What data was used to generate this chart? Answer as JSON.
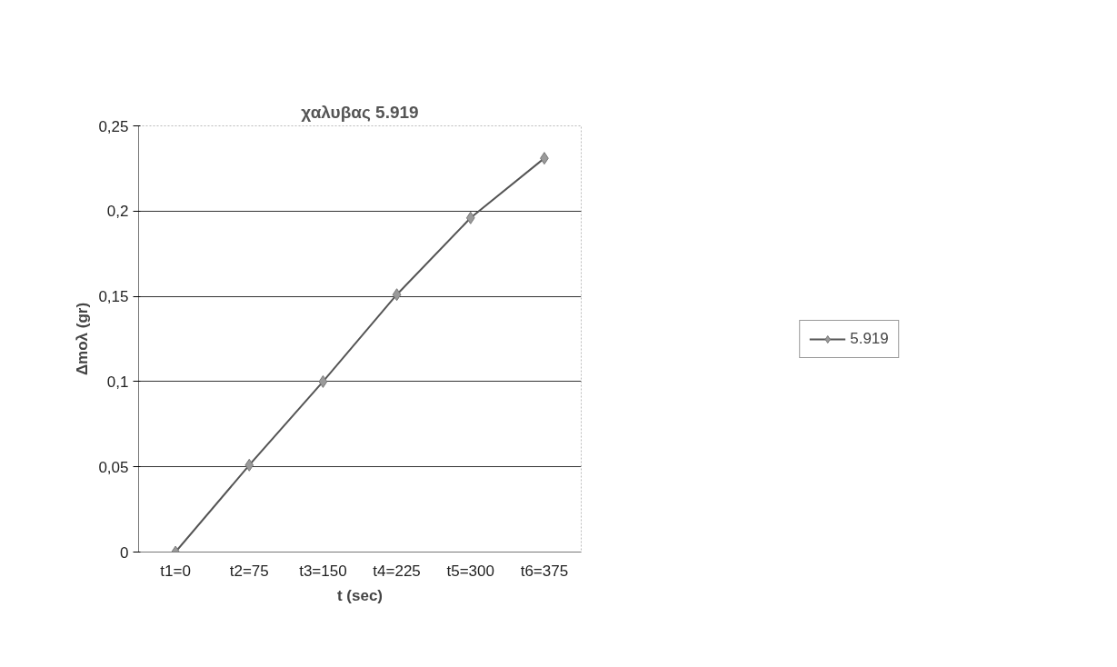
{
  "chart_data": {
    "type": "line",
    "title": "χαλυβας 5.919",
    "xlabel": "t (sec)",
    "ylabel": "Δmoλ (gr)",
    "categories": [
      "t1=0",
      "t2=75",
      "t3=150",
      "t4=225",
      "t5=300",
      "t6=375"
    ],
    "series": [
      {
        "name": "5.919",
        "color": "#555555",
        "values": [
          0,
          0.051,
          0.1,
          0.151,
          0.196,
          0.231
        ]
      }
    ],
    "ylim": [
      0,
      0.25
    ],
    "yticks": [
      {
        "value": 0,
        "label": "0"
      },
      {
        "value": 0.05,
        "label": "0,05"
      },
      {
        "value": 0.1,
        "label": "0,1"
      },
      {
        "value": 0.15,
        "label": "0,15"
      },
      {
        "value": 0.2,
        "label": "0,2"
      },
      {
        "value": 0.25,
        "label": "0,25"
      }
    ],
    "grid": "y",
    "legend": "right",
    "marker": "diamond",
    "line_style": "solid"
  }
}
